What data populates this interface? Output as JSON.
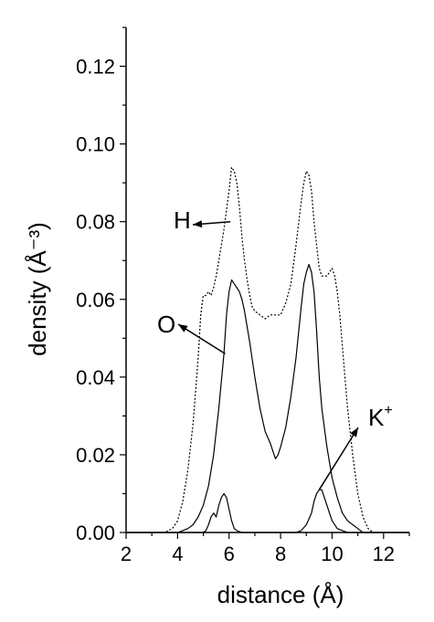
{
  "chart_data": {
    "type": "line",
    "title": "",
    "xlabel": "distance (Å)",
    "ylabel": "density (Å⁻³)",
    "xlim": [
      2,
      13
    ],
    "ylim": [
      0,
      0.13
    ],
    "x_ticks": [
      "2",
      "4",
      "6",
      "8",
      "10",
      "12"
    ],
    "y_ticks": [
      "0.00",
      "0.02",
      "0.04",
      "0.06",
      "0.08",
      "0.10",
      "0.12"
    ],
    "grid": false,
    "legend": "none",
    "annotations": [
      {
        "text": "H",
        "target": "H"
      },
      {
        "text": "O",
        "target": "O"
      },
      {
        "text": "K",
        "superscript": "+",
        "target": "K+"
      }
    ],
    "series": [
      {
        "name": "H",
        "style": "dotted",
        "x": [
          2,
          3.5,
          3.8,
          4.0,
          4.2,
          4.4,
          4.6,
          4.8,
          4.9,
          5.0,
          5.1,
          5.2,
          5.3,
          5.4,
          5.5,
          5.6,
          5.7,
          5.8,
          5.9,
          6.0,
          6.1,
          6.2,
          6.3,
          6.4,
          6.5,
          6.6,
          6.7,
          6.8,
          6.9,
          7.0,
          7.2,
          7.4,
          7.6,
          7.8,
          8.0,
          8.2,
          8.4,
          8.6,
          8.8,
          8.9,
          9.0,
          9.1,
          9.2,
          9.3,
          9.4,
          9.5,
          9.6,
          9.7,
          9.8,
          9.9,
          10.0,
          10.1,
          10.2,
          10.3,
          10.4,
          10.5,
          10.6,
          10.8,
          11.0,
          11.2,
          11.4,
          11.6,
          11.8,
          12.0,
          13.0
        ],
        "y": [
          0.0,
          0.0,
          0.001,
          0.003,
          0.008,
          0.016,
          0.028,
          0.045,
          0.056,
          0.061,
          0.061,
          0.062,
          0.061,
          0.063,
          0.066,
          0.07,
          0.074,
          0.078,
          0.083,
          0.088,
          0.094,
          0.093,
          0.09,
          0.084,
          0.076,
          0.07,
          0.065,
          0.061,
          0.058,
          0.057,
          0.056,
          0.055,
          0.056,
          0.056,
          0.056,
          0.059,
          0.064,
          0.074,
          0.085,
          0.09,
          0.093,
          0.092,
          0.088,
          0.08,
          0.074,
          0.068,
          0.066,
          0.066,
          0.066,
          0.067,
          0.068,
          0.066,
          0.062,
          0.056,
          0.048,
          0.04,
          0.032,
          0.02,
          0.01,
          0.004,
          0.001,
          0.0,
          0.0,
          0.0,
          0.0
        ]
      },
      {
        "name": "O",
        "style": "solid",
        "x": [
          2,
          4.0,
          4.2,
          4.4,
          4.6,
          4.8,
          5.0,
          5.2,
          5.4,
          5.6,
          5.8,
          5.9,
          6.0,
          6.1,
          6.2,
          6.3,
          6.4,
          6.5,
          6.6,
          6.8,
          7.0,
          7.2,
          7.4,
          7.6,
          7.7,
          7.8,
          7.9,
          8.0,
          8.2,
          8.4,
          8.6,
          8.8,
          8.9,
          9.0,
          9.1,
          9.2,
          9.3,
          9.4,
          9.5,
          9.6,
          9.8,
          10.0,
          10.2,
          10.4,
          10.6,
          10.8,
          11.0,
          11.2,
          13.0
        ],
        "y": [
          0.0,
          0.0,
          0.0005,
          0.001,
          0.002,
          0.004,
          0.007,
          0.012,
          0.02,
          0.032,
          0.046,
          0.056,
          0.062,
          0.065,
          0.064,
          0.063,
          0.062,
          0.06,
          0.057,
          0.049,
          0.04,
          0.032,
          0.026,
          0.023,
          0.021,
          0.019,
          0.02,
          0.022,
          0.027,
          0.035,
          0.045,
          0.058,
          0.064,
          0.067,
          0.069,
          0.067,
          0.062,
          0.052,
          0.04,
          0.032,
          0.022,
          0.014,
          0.009,
          0.005,
          0.003,
          0.002,
          0.001,
          0.0,
          0.0
        ]
      },
      {
        "name": "K+",
        "style": "solid",
        "x": [
          2,
          5.0,
          5.1,
          5.2,
          5.3,
          5.4,
          5.5,
          5.6,
          5.7,
          5.8,
          5.9,
          6.0,
          6.1,
          6.2,
          6.3,
          6.5,
          8.6,
          8.8,
          9.0,
          9.2,
          9.3,
          9.4,
          9.5,
          9.6,
          9.7,
          9.8,
          9.9,
          10.0,
          10.2,
          10.4,
          10.6,
          13.0
        ],
        "y": [
          0.0,
          0.0,
          0.0005,
          0.002,
          0.004,
          0.005,
          0.004,
          0.007,
          0.009,
          0.01,
          0.009,
          0.006,
          0.003,
          0.001,
          0.0005,
          0.0,
          0.0,
          0.0005,
          0.002,
          0.005,
          0.008,
          0.01,
          0.011,
          0.011,
          0.009,
          0.007,
          0.005,
          0.003,
          0.001,
          0.0005,
          0.0,
          0.0
        ]
      }
    ]
  }
}
